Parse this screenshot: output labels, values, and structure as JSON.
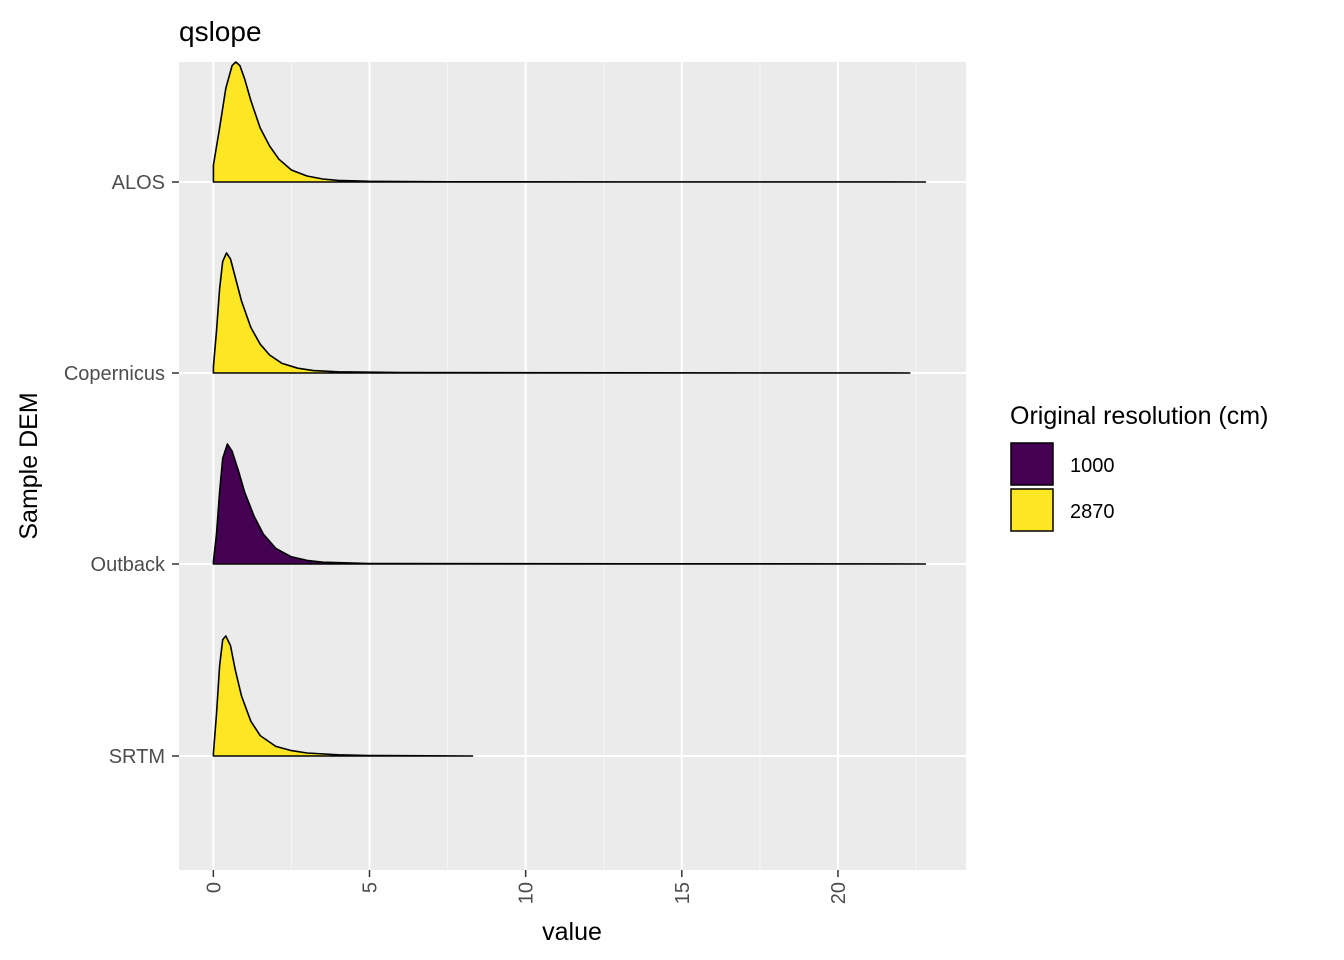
{
  "chart_data": {
    "type": "ridgeline",
    "title": "qslope",
    "xlabel": "value",
    "ylabel": "Sample DEM",
    "xlim": [
      -1.1,
      24.1
    ],
    "x_ticks": [
      0,
      5,
      10,
      15,
      20
    ],
    "x_tick_labels": [
      "0",
      "5",
      "10",
      "15",
      "20"
    ],
    "categories": [
      "ALOS",
      "Copernicus",
      "Outback",
      "SRTM"
    ],
    "legend": {
      "title": "Original resolution (cm)",
      "position": "right",
      "entries": [
        {
          "label": "1000",
          "color": "#440154"
        },
        {
          "label": "2870",
          "color": "#FDE725"
        }
      ]
    },
    "grid": true,
    "series": [
      {
        "category": "ALOS",
        "resolution": "2870",
        "color": "#FDE725",
        "x": [
          0,
          0.2,
          0.4,
          0.6,
          0.72,
          0.85,
          1.0,
          1.2,
          1.5,
          1.8,
          2.1,
          2.5,
          3.0,
          3.5,
          4.0,
          5.0,
          7.5,
          22.8
        ],
        "density": [
          0.14,
          0.45,
          0.78,
          0.97,
          1.0,
          0.97,
          0.86,
          0.68,
          0.45,
          0.3,
          0.19,
          0.1,
          0.05,
          0.025,
          0.013,
          0.006,
          0.002,
          0.0
        ]
      },
      {
        "category": "Copernicus",
        "resolution": "2870",
        "color": "#FDE725",
        "x": [
          0,
          0.1,
          0.2,
          0.3,
          0.42,
          0.55,
          0.7,
          0.9,
          1.2,
          1.5,
          1.8,
          2.2,
          2.7,
          3.2,
          4.0,
          6.0,
          22.3
        ],
        "density": [
          0.05,
          0.35,
          0.7,
          0.93,
          1.0,
          0.95,
          0.8,
          0.6,
          0.38,
          0.24,
          0.15,
          0.08,
          0.04,
          0.02,
          0.01,
          0.003,
          0.0
        ]
      },
      {
        "category": "Outback",
        "resolution": "1000",
        "color": "#440154",
        "x": [
          0,
          0.1,
          0.2,
          0.3,
          0.45,
          0.6,
          0.8,
          1.0,
          1.3,
          1.6,
          2.0,
          2.5,
          3.0,
          3.5,
          5.0,
          22.8
        ],
        "density": [
          0.02,
          0.25,
          0.6,
          0.88,
          1.0,
          0.94,
          0.78,
          0.6,
          0.4,
          0.25,
          0.13,
          0.06,
          0.03,
          0.015,
          0.004,
          0.0
        ]
      },
      {
        "category": "SRTM",
        "resolution": "2870",
        "color": "#FDE725",
        "x": [
          0,
          0.1,
          0.2,
          0.3,
          0.4,
          0.55,
          0.7,
          0.9,
          1.2,
          1.5,
          2.0,
          2.5,
          3.0,
          4.0,
          5.0,
          8.3
        ],
        "density": [
          0.02,
          0.35,
          0.75,
          0.97,
          1.0,
          0.92,
          0.72,
          0.5,
          0.29,
          0.17,
          0.08,
          0.045,
          0.025,
          0.01,
          0.004,
          0.0
        ]
      }
    ]
  }
}
